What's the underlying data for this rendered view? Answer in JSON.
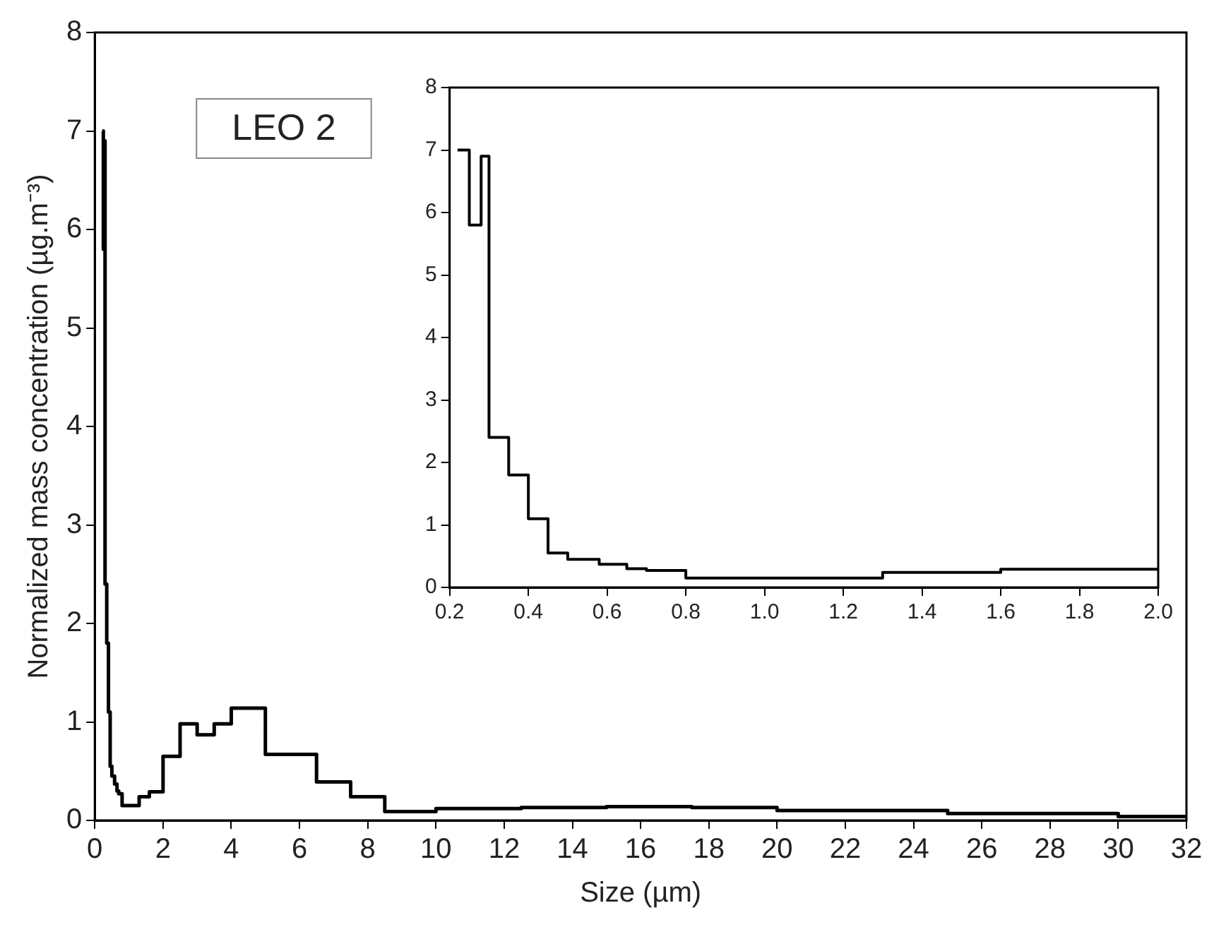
{
  "chart_data": [
    {
      "type": "step",
      "xlabel": "Size (µm)",
      "ylabel": "Normalized mass concentration (µg.m⁻³)",
      "annotations": [
        "LEO 2"
      ],
      "x": [
        0.22,
        0.25,
        0.28,
        0.3,
        0.35,
        0.4,
        0.45,
        0.5,
        0.58,
        0.65,
        0.7,
        0.8,
        1.3,
        1.6,
        2.0,
        2.5,
        3.0,
        3.5,
        4.0,
        5.0,
        6.5,
        7.5,
        8.5,
        10,
        12.5,
        15,
        17.5,
        20,
        25,
        30,
        32
      ],
      "series": [
        {
          "color": "#000000",
          "values": [
            7.0,
            5.8,
            6.9,
            2.4,
            1.8,
            1.1,
            0.55,
            0.45,
            0.37,
            0.3,
            0.27,
            0.15,
            0.24,
            0.29,
            0.65,
            0.98,
            0.87,
            0.98,
            1.14,
            0.67,
            0.39,
            0.24,
            0.09,
            0.12,
            0.13,
            0.14,
            0.13,
            0.1,
            0.07,
            0.04,
            0.04
          ]
        }
      ],
      "xlim": [
        0,
        32
      ],
      "xticks": [
        0,
        2,
        4,
        6,
        8,
        10,
        12,
        14,
        16,
        18,
        20,
        22,
        24,
        26,
        28,
        30,
        32
      ],
      "ylim": [
        0,
        8
      ],
      "yticks": [
        0,
        1,
        2,
        3,
        4,
        5,
        6,
        7,
        8
      ],
      "grid": false,
      "legend": false
    },
    {
      "type": "step",
      "x": [
        0.22,
        0.25,
        0.28,
        0.3,
        0.35,
        0.4,
        0.45,
        0.5,
        0.58,
        0.65,
        0.7,
        0.8,
        1.3,
        1.6,
        2.0
      ],
      "series": [
        {
          "color": "#000000",
          "values": [
            7.0,
            5.8,
            6.9,
            2.4,
            1.8,
            1.1,
            0.55,
            0.45,
            0.37,
            0.3,
            0.27,
            0.15,
            0.24,
            0.29,
            0.29
          ]
        }
      ],
      "xlim": [
        0.2,
        2.0
      ],
      "xticks": [
        {
          "value": 0.2,
          "label": "0.2"
        },
        {
          "value": 0.4,
          "label": "0.4"
        },
        {
          "value": 0.6,
          "label": "0.6"
        },
        {
          "value": 0.8,
          "label": "0.8"
        },
        {
          "value": 1.0,
          "label": "1.0"
        },
        {
          "value": 1.2,
          "label": "1.2"
        },
        {
          "value": 1.4,
          "label": "1.4"
        },
        {
          "value": 1.6,
          "label": "1.6"
        },
        {
          "value": 1.8,
          "label": "1.8"
        },
        {
          "value": 2.0,
          "label": "2.0"
        }
      ],
      "ylim": [
        0,
        8
      ],
      "yticks": [
        0,
        1,
        2,
        3,
        4,
        5,
        6,
        7,
        8
      ],
      "grid": false,
      "legend": false
    }
  ]
}
